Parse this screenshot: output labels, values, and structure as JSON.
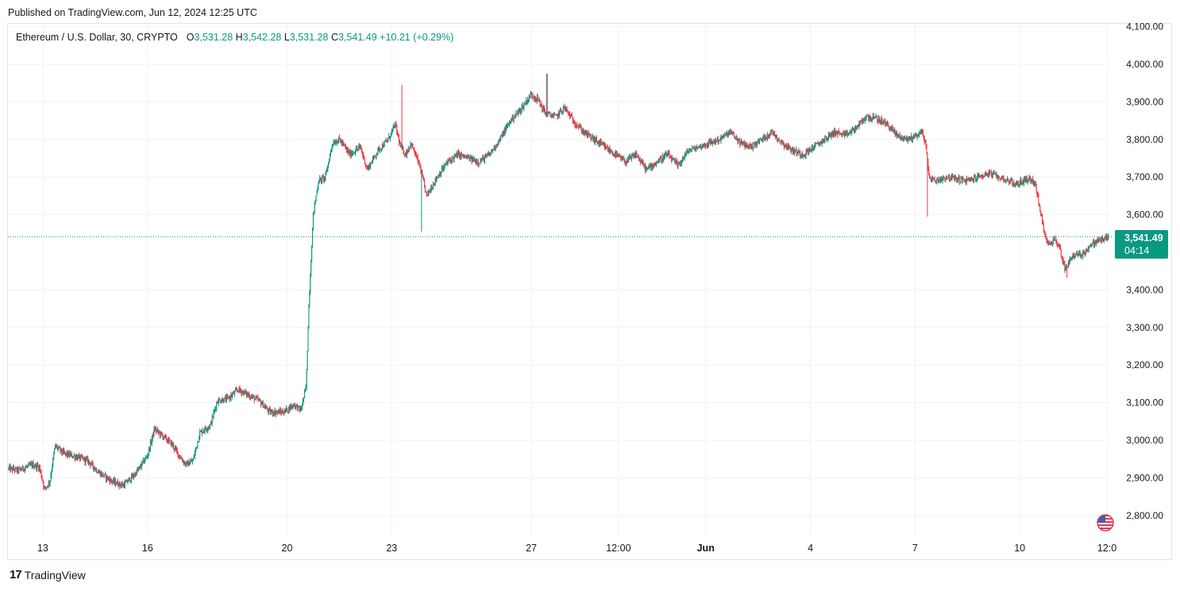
{
  "header": {
    "published": "Published on TradingView.com, Jun 12, 2024 12:25 UTC"
  },
  "legend": {
    "symbol": "Ethereum / U.S. Dollar, 30, CRYPTO",
    "o_label": "O",
    "o_value": "3,531.28",
    "h_label": "H",
    "h_value": "3,542.28",
    "l_label": "L",
    "l_value": "3,531.28",
    "c_label": "C",
    "c_value": "3,541.49",
    "change": "+10.21 (+0.29%)"
  },
  "price_tag": {
    "price": "3,541.49",
    "countdown": "04:14"
  },
  "footer": {
    "brand": "TradingView",
    "brand_mark": "17"
  },
  "colors": {
    "up": "#089981",
    "down": "#f23645",
    "grid": "#f0f3fa",
    "text": "#131722",
    "flag_icon": "us-flag-icon"
  },
  "chart_data": {
    "type": "candlestick",
    "timeframe": "30",
    "y_ticks": [
      {
        "value": 4100,
        "label": "4,100.00"
      },
      {
        "value": 4000,
        "label": "4,000.00"
      },
      {
        "value": 3900,
        "label": "3,900.00"
      },
      {
        "value": 3800,
        "label": "3,800.00"
      },
      {
        "value": 3700,
        "label": "3,700.00"
      },
      {
        "value": 3600,
        "label": "3,600.00"
      },
      {
        "value": 3400,
        "label": "3,400.00"
      },
      {
        "value": 3300,
        "label": "3,300.00"
      },
      {
        "value": 3200,
        "label": "3,200.00"
      },
      {
        "value": 3100,
        "label": "3,100.00"
      },
      {
        "value": 3000,
        "label": "3,000.00"
      },
      {
        "value": 2900,
        "label": "2,900.00"
      },
      {
        "value": 2800,
        "label": "2,800.00"
      }
    ],
    "x_ticks": [
      {
        "day": 1,
        "label": "13"
      },
      {
        "day": 4,
        "label": "16"
      },
      {
        "day": 8,
        "label": "20"
      },
      {
        "day": 11,
        "label": "23"
      },
      {
        "day": 15,
        "label": "27"
      },
      {
        "day": 17.5,
        "label": "12:00"
      },
      {
        "day": 20,
        "label": "Jun",
        "bold": true
      },
      {
        "day": 23,
        "label": "4"
      },
      {
        "day": 26,
        "label": "7"
      },
      {
        "day": 29,
        "label": "10"
      },
      {
        "day": 31.5,
        "label": "12:0"
      }
    ],
    "x_range": [
      0,
      31.75
    ],
    "y_range": [
      2745,
      4110
    ],
    "last_price": 3541.49,
    "path": [
      [
        0.0,
        2925
      ],
      [
        0.3,
        2920
      ],
      [
        0.7,
        2935
      ],
      [
        0.9,
        2928
      ],
      [
        1.05,
        2870
      ],
      [
        1.2,
        2890
      ],
      [
        1.35,
        2985
      ],
      [
        1.6,
        2965
      ],
      [
        2.0,
        2955
      ],
      [
        2.3,
        2945
      ],
      [
        2.6,
        2915
      ],
      [
        3.0,
        2890
      ],
      [
        3.3,
        2880
      ],
      [
        3.6,
        2905
      ],
      [
        3.8,
        2930
      ],
      [
        4.0,
        2960
      ],
      [
        4.2,
        3030
      ],
      [
        4.45,
        3010
      ],
      [
        4.7,
        2990
      ],
      [
        4.9,
        2960
      ],
      [
        5.1,
        2935
      ],
      [
        5.3,
        2945
      ],
      [
        5.5,
        3020
      ],
      [
        5.8,
        3040
      ],
      [
        6.0,
        3105
      ],
      [
        6.3,
        3110
      ],
      [
        6.6,
        3135
      ],
      [
        6.9,
        3120
      ],
      [
        7.2,
        3105
      ],
      [
        7.5,
        3075
      ],
      [
        7.9,
        3075
      ],
      [
        8.2,
        3095
      ],
      [
        8.4,
        3080
      ],
      [
        8.55,
        3145
      ],
      [
        8.62,
        3350
      ],
      [
        8.75,
        3600
      ],
      [
        8.9,
        3690
      ],
      [
        9.1,
        3700
      ],
      [
        9.3,
        3790
      ],
      [
        9.5,
        3800
      ],
      [
        9.8,
        3760
      ],
      [
        10.1,
        3780
      ],
      [
        10.3,
        3720
      ],
      [
        10.6,
        3770
      ],
      [
        10.9,
        3800
      ],
      [
        11.1,
        3840
      ],
      [
        11.25,
        3780
      ],
      [
        11.4,
        3760
      ],
      [
        11.55,
        3790
      ],
      [
        11.8,
        3730
      ],
      [
        12.0,
        3650
      ],
      [
        12.3,
        3700
      ],
      [
        12.6,
        3740
      ],
      [
        12.9,
        3760
      ],
      [
        13.2,
        3750
      ],
      [
        13.5,
        3740
      ],
      [
        13.8,
        3760
      ],
      [
        14.1,
        3800
      ],
      [
        14.4,
        3850
      ],
      [
        14.7,
        3880
      ],
      [
        15.0,
        3920
      ],
      [
        15.2,
        3905
      ],
      [
        15.4,
        3870
      ],
      [
        15.7,
        3860
      ],
      [
        15.95,
        3885
      ],
      [
        16.2,
        3850
      ],
      [
        16.5,
        3820
      ],
      [
        16.8,
        3800
      ],
      [
        17.1,
        3780
      ],
      [
        17.4,
        3760
      ],
      [
        17.7,
        3740
      ],
      [
        18.0,
        3760
      ],
      [
        18.3,
        3720
      ],
      [
        18.6,
        3740
      ],
      [
        18.9,
        3760
      ],
      [
        19.2,
        3730
      ],
      [
        19.5,
        3770
      ],
      [
        19.8,
        3780
      ],
      [
        20.1,
        3790
      ],
      [
        20.4,
        3800
      ],
      [
        20.7,
        3820
      ],
      [
        21.0,
        3790
      ],
      [
        21.3,
        3780
      ],
      [
        21.6,
        3800
      ],
      [
        21.9,
        3820
      ],
      [
        22.2,
        3790
      ],
      [
        22.5,
        3770
      ],
      [
        22.8,
        3760
      ],
      [
        23.1,
        3780
      ],
      [
        23.4,
        3800
      ],
      [
        23.7,
        3820
      ],
      [
        24.0,
        3810
      ],
      [
        24.3,
        3830
      ],
      [
        24.6,
        3860
      ],
      [
        24.9,
        3855
      ],
      [
        25.2,
        3840
      ],
      [
        25.5,
        3810
      ],
      [
        25.8,
        3800
      ],
      [
        26.0,
        3810
      ],
      [
        26.2,
        3820
      ],
      [
        26.3,
        3790
      ],
      [
        26.4,
        3700
      ],
      [
        26.6,
        3690
      ],
      [
        26.9,
        3700
      ],
      [
        27.2,
        3695
      ],
      [
        27.5,
        3690
      ],
      [
        27.8,
        3700
      ],
      [
        28.1,
        3710
      ],
      [
        28.4,
        3700
      ],
      [
        28.7,
        3690
      ],
      [
        28.9,
        3680
      ],
      [
        29.1,
        3690
      ],
      [
        29.3,
        3695
      ],
      [
        29.45,
        3680
      ],
      [
        29.6,
        3600
      ],
      [
        29.8,
        3520
      ],
      [
        30.0,
        3535
      ],
      [
        30.15,
        3510
      ],
      [
        30.3,
        3455
      ],
      [
        30.5,
        3490
      ],
      [
        30.8,
        3495
      ],
      [
        31.0,
        3515
      ],
      [
        31.2,
        3530
      ],
      [
        31.4,
        3535
      ],
      [
        31.55,
        3541
      ]
    ],
    "spikes": [
      {
        "day": 11.3,
        "high": 3945
      },
      {
        "day": 11.85,
        "low": 3555
      },
      {
        "day": 15.45,
        "high": 3975
      },
      {
        "day": 26.35,
        "low": 3595
      },
      {
        "day": 30.35,
        "low": 3432
      }
    ]
  }
}
